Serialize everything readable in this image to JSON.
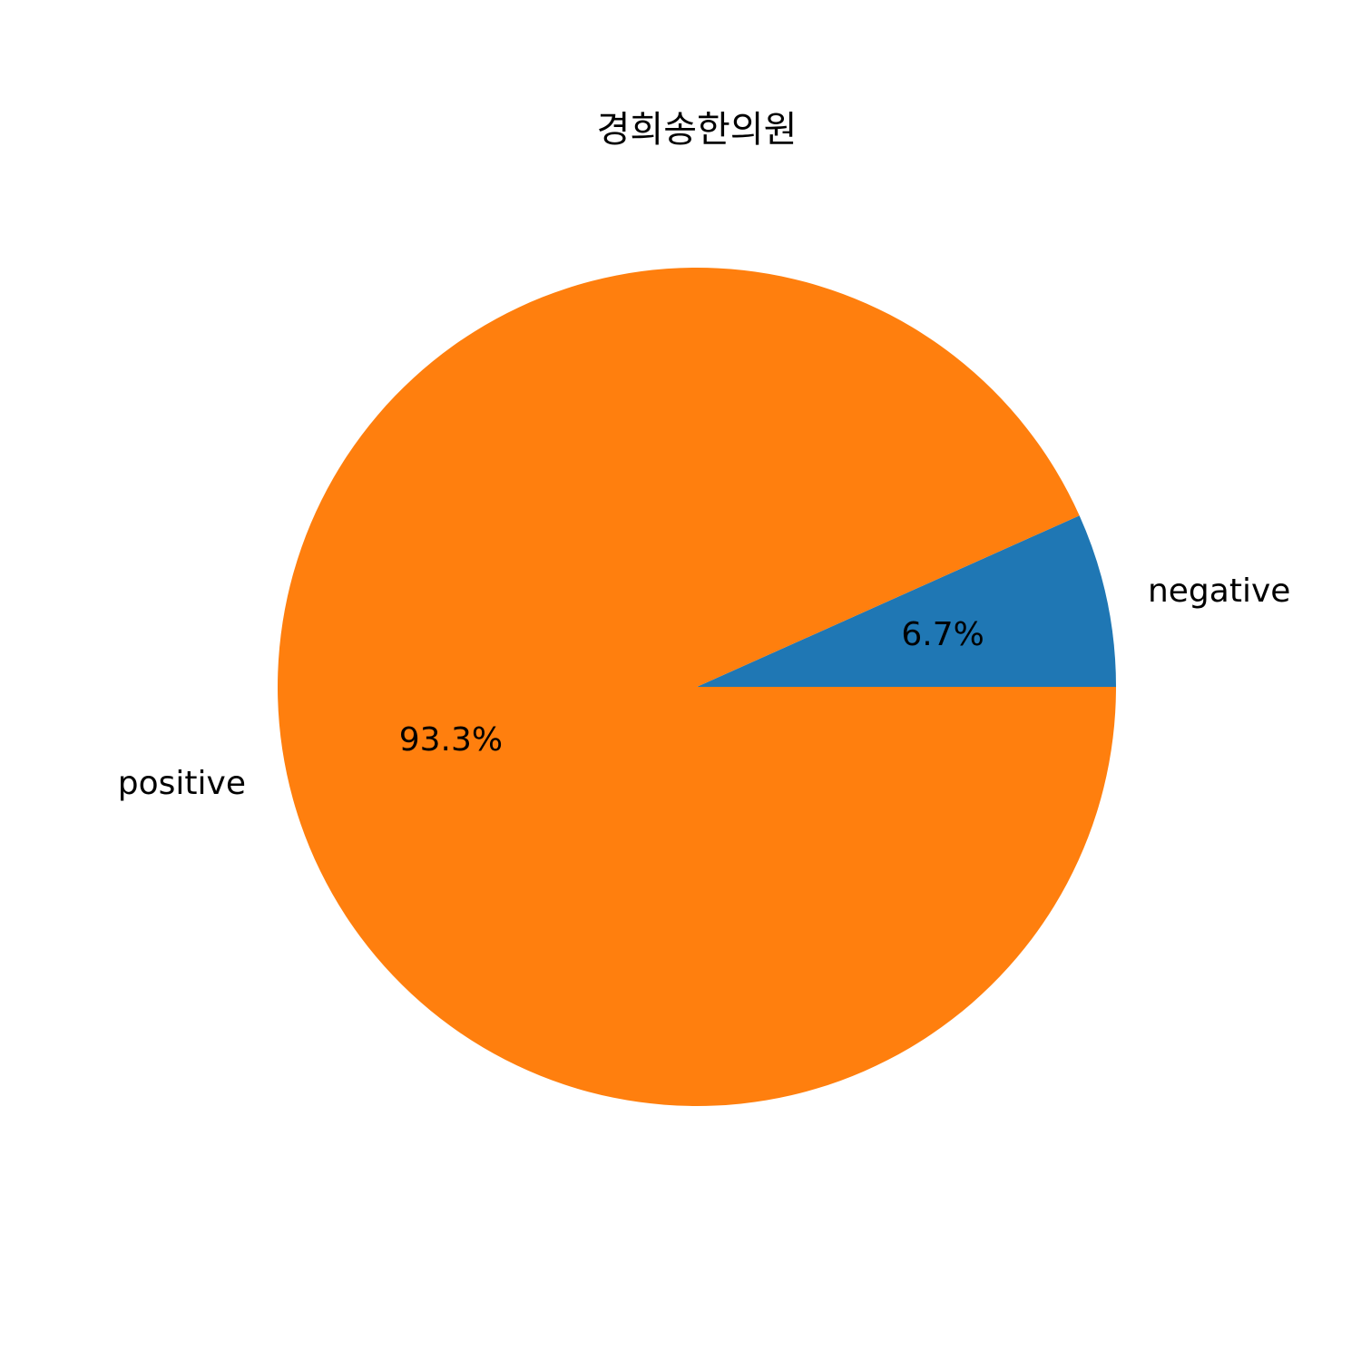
{
  "chart_data": {
    "type": "pie",
    "title": "경희송한의원",
    "categories": [
      "negative",
      "positive"
    ],
    "values": [
      6.7,
      93.3
    ],
    "percent_labels": [
      "6.7%",
      "93.3%"
    ],
    "colors": [
      "#1f77b4",
      "#ff7f0e"
    ],
    "start_angle_deg": 0,
    "direction": "counterclockwise",
    "legend": "none"
  }
}
